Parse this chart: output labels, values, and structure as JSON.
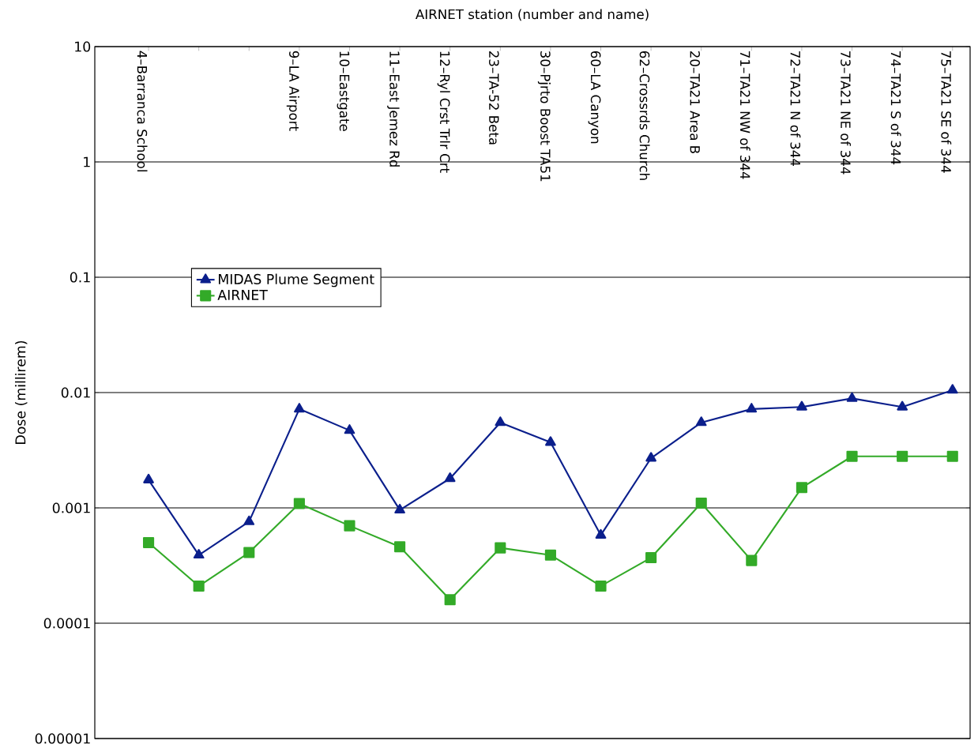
{
  "chart_data": {
    "type": "line",
    "xlabel": "AIRNET station (number and name)",
    "ylabel": "Dose (millirem)",
    "categories": [
      "4–Barranca School",
      null,
      null,
      "9–LA Airport",
      "10–Eastgate",
      "11–East Jemez Rd",
      "12–Ryl Crst Trlr Crt",
      "23–TA-52 Beta",
      "30–Pjrto Boost TA51",
      "60–LA Canyon",
      "62–Crossrds Church",
      "20–TA21 Area B",
      "71–TA21 NW of 344",
      "72–TA21 N of 344",
      "73–TA21 NE of 344",
      "74–TA21 S of 344",
      "75–TA21 SE of 344"
    ],
    "series": [
      {
        "name": "MIDAS Plume Segment",
        "color": "#0b1f8c",
        "marker": "triangle",
        "values": [
          0.00175,
          0.00039,
          0.00076,
          0.0072,
          0.0047,
          0.00096,
          0.0018,
          0.0055,
          0.0037,
          0.00058,
          0.0027,
          0.0055,
          0.0072,
          0.0075,
          0.0089,
          0.0075,
          0.0105
        ]
      },
      {
        "name": "AIRNET",
        "color": "#33aa28",
        "marker": "square",
        "values": [
          0.0005,
          0.00021,
          0.00041,
          0.00109,
          0.0007,
          0.00046,
          0.00016,
          0.00045,
          0.00039,
          0.00021,
          0.00037,
          0.0011,
          0.00035,
          0.0015,
          0.0028,
          0.0028,
          0.0028
        ]
      }
    ],
    "log": true,
    "ylim": [
      1e-05,
      10
    ],
    "yticks": [
      {
        "value": 1e-05,
        "label": "0.00001"
      },
      {
        "value": 0.0001,
        "label": "0.0001"
      },
      {
        "value": 0.001,
        "label": "0.001"
      },
      {
        "value": 0.01,
        "label": "0.01"
      },
      {
        "value": 0.1,
        "label": "0.1"
      },
      1,
      10
    ],
    "grid": "y",
    "legend": "top left",
    "line_style": "solid"
  }
}
